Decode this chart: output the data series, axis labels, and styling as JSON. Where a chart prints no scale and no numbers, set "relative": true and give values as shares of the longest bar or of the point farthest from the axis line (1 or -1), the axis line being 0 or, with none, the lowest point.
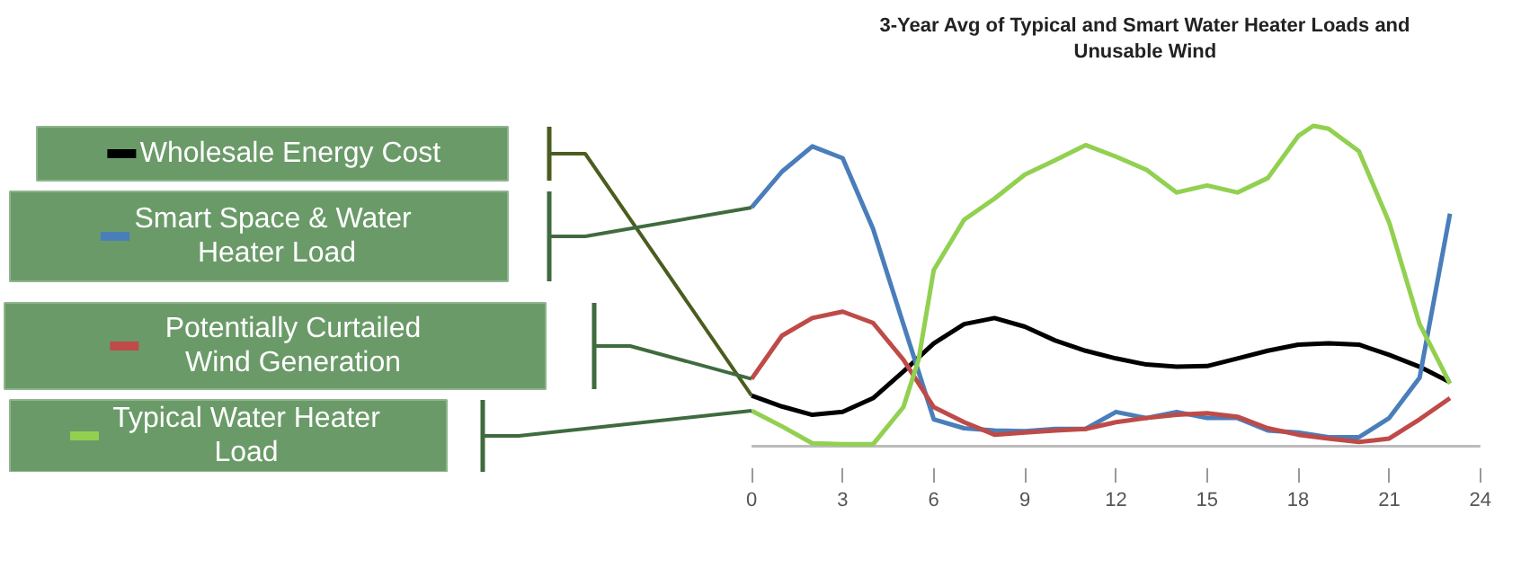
{
  "chart_data": {
    "type": "line",
    "title": "3-Year Avg of Typical and Smart Water Heater Loads and Unusable Wind",
    "relative": true,
    "legend": "left",
    "xlim": [
      0,
      24
    ],
    "xticks": [
      0,
      3,
      6,
      9,
      12,
      15,
      18,
      21,
      24
    ],
    "x": [
      0,
      1,
      2,
      3,
      4,
      5,
      6,
      7,
      8,
      9,
      10,
      11,
      12,
      13,
      14,
      15,
      16,
      17,
      18,
      19,
      20,
      21,
      22,
      23
    ],
    "series": [
      {
        "name": "Wholesale Energy Cost",
        "color": "#000000",
        "values": [
          0.158,
          0.124,
          0.098,
          0.107,
          0.15,
          0.233,
          0.321,
          0.381,
          0.4,
          0.373,
          0.33,
          0.298,
          0.274,
          0.255,
          0.248,
          0.25,
          0.274,
          0.298,
          0.317,
          0.321,
          0.317,
          0.285,
          0.248,
          0.2
        ]
      },
      {
        "name": "Smart  Space & Water Heater Load",
        "color": "#4a7ebb",
        "values": [
          0.745,
          0.857,
          0.936,
          0.899,
          0.679,
          0.381,
          0.084,
          0.056,
          0.049,
          0.047,
          0.054,
          0.054,
          0.107,
          0.088,
          0.107,
          0.088,
          0.088,
          0.049,
          0.043,
          0.028,
          0.028,
          0.088,
          0.214,
          0.726
        ]
      },
      {
        "name": "Potentially Curtailed Wind Generation",
        "color": "#be4b48",
        "values": [
          0.21,
          0.345,
          0.4,
          0.42,
          0.385,
          0.27,
          0.122,
          0.075,
          0.036,
          0.043,
          0.049,
          0.054,
          0.075,
          0.088,
          0.098,
          0.103,
          0.092,
          0.056,
          0.036,
          0.024,
          0.013,
          0.024,
          0.084,
          0.15
        ]
      },
      {
        "name": "Typical Water Heater Load",
        "color": "#92d050",
        "x": [
          0,
          1,
          2,
          3,
          4,
          5,
          5.5,
          6,
          7,
          8,
          9,
          10,
          11,
          12,
          13,
          14,
          15,
          16,
          17,
          18,
          18.5,
          19,
          20,
          21,
          22,
          23
        ],
        "values": [
          0.111,
          0.062,
          0.009,
          0.006,
          0.006,
          0.122,
          0.27,
          0.55,
          0.707,
          0.773,
          0.848,
          0.893,
          0.94,
          0.904,
          0.863,
          0.792,
          0.814,
          0.792,
          0.837,
          0.968,
          1,
          0.991,
          0.921,
          0.698,
          0.381,
          0.195
        ]
      }
    ]
  }
}
